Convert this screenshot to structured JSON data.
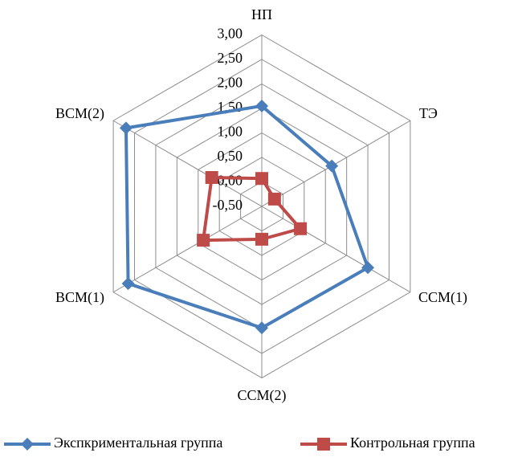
{
  "chart_data": {
    "type": "radar",
    "categories": [
      "НП",
      "ТЭ",
      "ССМ(1)",
      "ССМ(2)",
      "ВСМ(1)",
      "ВСМ(2)"
    ],
    "series": [
      {
        "name": "Экспкриментальная группа",
        "color": "#4a7ebb",
        "marker": "diamond",
        "values": [
          1.55,
          1.15,
          2.0,
          1.98,
          2.65,
          2.7
        ]
      },
      {
        "name": "Контрольная группа",
        "color": "#be4b48",
        "marker": "square",
        "values": [
          0.07,
          -0.2,
          0.41,
          0.17,
          0.88,
          0.68
        ]
      }
    ],
    "ylim": [
      -0.5,
      3.0
    ],
    "yticks": [
      {
        "value": -0.5,
        "label": "-0,50"
      },
      {
        "value": 0,
        "label": "0,00"
      },
      {
        "value": 0.5,
        "label": "0,50"
      },
      {
        "value": 1.0,
        "label": "1,00"
      },
      {
        "value": 1.5,
        "label": "1,50"
      },
      {
        "value": 2.0,
        "label": "2,00"
      },
      {
        "value": 2.5,
        "label": "2,50"
      },
      {
        "value": 3.0,
        "label": "3,00"
      }
    ],
    "grid": true,
    "legend": "bottom"
  }
}
